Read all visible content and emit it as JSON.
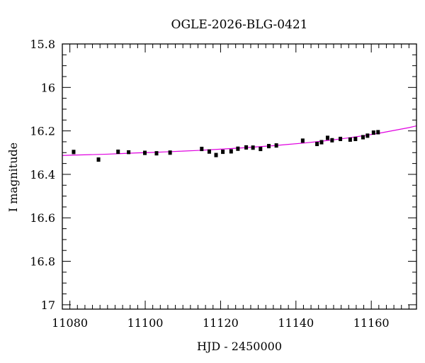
{
  "chart_data": {
    "type": "scatter",
    "title": "OGLE-2026-BLG-0421",
    "xlabel": "HJD - 2450000",
    "ylabel": "I magnitude",
    "xlim": [
      11078,
      11172
    ],
    "ylim": [
      15.8,
      17.02
    ],
    "y_inverted": true,
    "x_ticks": [
      11080,
      11100,
      11120,
      11140,
      11160
    ],
    "y_ticks": [
      15.8,
      16,
      16.2,
      16.4,
      16.6,
      16.8,
      17
    ],
    "y_tick_labels": [
      "15.8",
      "16",
      "16.2",
      "16.4",
      "16.6",
      "16.8",
      "17"
    ],
    "x_minor_step": 2,
    "y_minor_step": 0.05,
    "grid": false,
    "series": [
      {
        "kind": "points",
        "color": "#000000",
        "x": [
          11081.0,
          11087.6,
          11092.8,
          11095.6,
          11099.9,
          11103.0,
          11106.6,
          11115.0,
          11117.0,
          11118.8,
          11120.6,
          11122.8,
          11124.6,
          11126.8,
          11128.6,
          11130.6,
          11132.8,
          11134.8,
          11141.8,
          11145.6,
          11146.8,
          11148.4,
          11149.6,
          11151.8,
          11154.4,
          11155.8,
          11157.8,
          11159.0,
          11160.6,
          11161.8
        ],
        "y": [
          16.297,
          16.332,
          16.296,
          16.298,
          16.301,
          16.303,
          16.3,
          16.283,
          16.295,
          16.311,
          16.296,
          16.294,
          16.282,
          16.276,
          16.277,
          16.283,
          16.27,
          16.267,
          16.245,
          16.26,
          16.252,
          16.232,
          16.243,
          16.237,
          16.24,
          16.237,
          16.229,
          16.222,
          16.208,
          16.206
        ],
        "err": [
          0.008,
          0.008,
          0.008,
          0.007,
          0.008,
          0.008,
          0.008,
          0.008,
          0.008,
          0.008,
          0.008,
          0.008,
          0.008,
          0.008,
          0.008,
          0.008,
          0.008,
          0.008,
          0.008,
          0.008,
          0.008,
          0.008,
          0.008,
          0.008,
          0.008,
          0.008,
          0.008,
          0.008,
          0.008,
          0.008
        ]
      },
      {
        "kind": "model-curve",
        "color": "#e000e0",
        "x": [
          11078,
          11082,
          11086,
          11090,
          11094,
          11098,
          11102,
          11106,
          11110,
          11114,
          11118,
          11122,
          11126,
          11130,
          11134,
          11138,
          11142,
          11146,
          11150,
          11154,
          11158,
          11162,
          11166,
          11170,
          11172
        ],
        "y": [
          16.313,
          16.311,
          16.309,
          16.307,
          16.304,
          16.301,
          16.299,
          16.296,
          16.293,
          16.29,
          16.286,
          16.282,
          16.278,
          16.273,
          16.268,
          16.262,
          16.256,
          16.249,
          16.241,
          16.232,
          16.222,
          16.211,
          16.198,
          16.185,
          16.177
        ]
      }
    ]
  }
}
